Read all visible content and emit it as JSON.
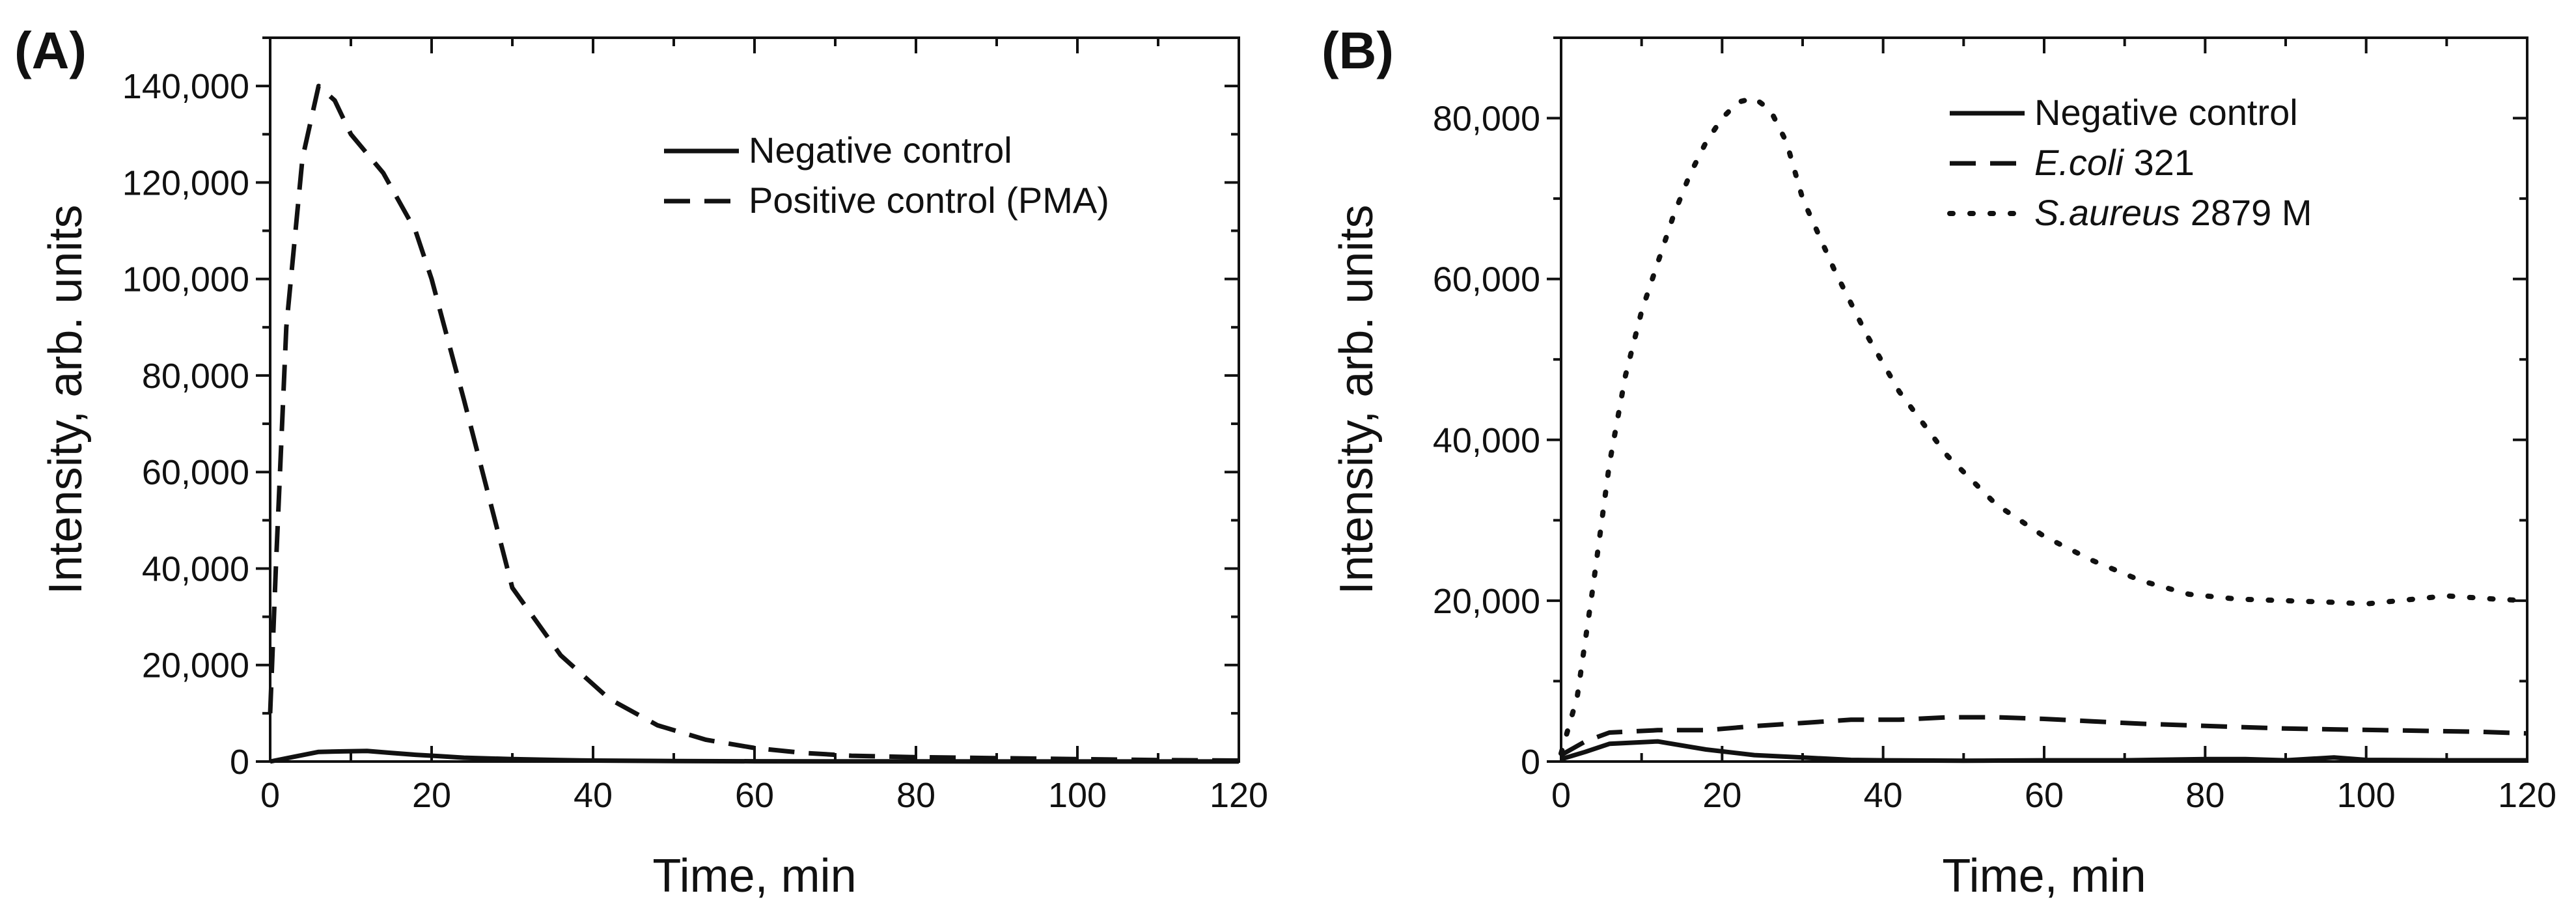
{
  "figure": {
    "colors": {
      "line": "#111111",
      "background": "#ffffff"
    }
  },
  "chart_data": [
    {
      "type": "line",
      "panel_label": "(A)",
      "xlabel": "Time, min",
      "ylabel": "Intensity, arb. units",
      "xlim": [
        0,
        120
      ],
      "ylim": [
        0,
        150000
      ],
      "x_ticks": [
        0,
        20,
        40,
        60,
        80,
        100,
        120
      ],
      "x_tick_labels": [
        "0",
        "20",
        "40",
        "60",
        "80",
        "100",
        "120"
      ],
      "y_ticks": [
        0,
        20000,
        40000,
        60000,
        80000,
        100000,
        120000,
        140000
      ],
      "y_tick_labels": [
        "0",
        "20,000",
        "40,000",
        "60,000",
        "80,000",
        "100,000",
        "120,000",
        "140,000"
      ],
      "legend_position": "top-right",
      "series": [
        {
          "name": "Negative control",
          "name_parts": [
            {
              "text": "Negative control",
              "italic": false
            }
          ],
          "style": "solid",
          "points": [
            [
              0,
              0
            ],
            [
              3,
              1000
            ],
            [
              6,
              2000
            ],
            [
              9,
              2100
            ],
            [
              12,
              2200
            ],
            [
              15,
              1800
            ],
            [
              18,
              1400
            ],
            [
              21,
              1100
            ],
            [
              24,
              800
            ],
            [
              30,
              500
            ],
            [
              36,
              300
            ],
            [
              40,
              200
            ],
            [
              50,
              100
            ],
            [
              60,
              50
            ],
            [
              80,
              30
            ],
            [
              100,
              20
            ],
            [
              120,
              20
            ]
          ]
        },
        {
          "name": "Positive control (PMA)",
          "name_parts": [
            {
              "text": "Positive control (PMA)",
              "italic": false
            }
          ],
          "style": "dashed",
          "points": [
            [
              0,
              10000
            ],
            [
              0.7,
              40000
            ],
            [
              2,
              90000
            ],
            [
              4,
              125000
            ],
            [
              6,
              140000
            ],
            [
              8,
              137000
            ],
            [
              10,
              130000
            ],
            [
              14,
              122000
            ],
            [
              18,
              110000
            ],
            [
              20,
              100000
            ],
            [
              24,
              75000
            ],
            [
              30,
              36000
            ],
            [
              36,
              22000
            ],
            [
              42,
              13000
            ],
            [
              48,
              7500
            ],
            [
              54,
              4500
            ],
            [
              60,
              2800
            ],
            [
              66,
              1800
            ],
            [
              72,
              1200
            ],
            [
              80,
              900
            ],
            [
              90,
              700
            ],
            [
              100,
              500
            ],
            [
              110,
              300
            ],
            [
              120,
              200
            ]
          ]
        }
      ]
    },
    {
      "type": "line",
      "panel_label": "(B)",
      "xlabel": "Time, min",
      "ylabel": "Intensity, arb. units",
      "xlim": [
        0,
        120
      ],
      "ylim": [
        0,
        90000
      ],
      "x_ticks": [
        0,
        20,
        40,
        60,
        80,
        100,
        120
      ],
      "x_tick_labels": [
        "0",
        "20",
        "40",
        "60",
        "80",
        "100",
        "120"
      ],
      "y_ticks": [
        0,
        20000,
        40000,
        60000,
        80000
      ],
      "y_tick_labels": [
        "0",
        "20,000",
        "40,000",
        "60,000",
        "80,000"
      ],
      "legend_position": "top-right",
      "series": [
        {
          "name": "Negative control",
          "name_parts": [
            {
              "text": "Negative control",
              "italic": false
            }
          ],
          "style": "solid",
          "points": [
            [
              0,
              300
            ],
            [
              3,
              1200
            ],
            [
              6,
              2200
            ],
            [
              12,
              2500
            ],
            [
              18,
              1500
            ],
            [
              24,
              800
            ],
            [
              30,
              500
            ],
            [
              36,
              200
            ],
            [
              40,
              150
            ],
            [
              50,
              100
            ],
            [
              60,
              150
            ],
            [
              70,
              150
            ],
            [
              80,
              300
            ],
            [
              85,
              300
            ],
            [
              90,
              150
            ],
            [
              96,
              500
            ],
            [
              100,
              200
            ],
            [
              110,
              150
            ],
            [
              120,
              150
            ]
          ]
        },
        {
          "name": "E.coli 321",
          "name_parts": [
            {
              "text": "E.coli",
              "italic": true
            },
            {
              "text": " 321",
              "italic": false
            }
          ],
          "style": "dashed",
          "points": [
            [
              0,
              800
            ],
            [
              3,
              2500
            ],
            [
              6,
              3600
            ],
            [
              12,
              3900
            ],
            [
              18,
              3900
            ],
            [
              24,
              4400
            ],
            [
              30,
              4800
            ],
            [
              36,
              5200
            ],
            [
              42,
              5200
            ],
            [
              48,
              5500
            ],
            [
              54,
              5500
            ],
            [
              60,
              5300
            ],
            [
              66,
              5000
            ],
            [
              72,
              4700
            ],
            [
              78,
              4500
            ],
            [
              84,
              4300
            ],
            [
              90,
              4100
            ],
            [
              96,
              4000
            ],
            [
              102,
              3900
            ],
            [
              108,
              3800
            ],
            [
              114,
              3700
            ],
            [
              120,
              3500
            ]
          ]
        },
        {
          "name": "S.aureus 2879 M",
          "name_parts": [
            {
              "text": "S.aureus",
              "italic": true
            },
            {
              "text": " 2879 M",
              "italic": false
            }
          ],
          "style": "dotted",
          "points": [
            [
              0,
              1000
            ],
            [
              2,
              8000
            ],
            [
              4,
              22000
            ],
            [
              6,
              37000
            ],
            [
              8,
              48000
            ],
            [
              10,
              56000
            ],
            [
              12,
              62000
            ],
            [
              14,
              68000
            ],
            [
              16,
              73000
            ],
            [
              18,
              77000
            ],
            [
              20,
              80000
            ],
            [
              22,
              82000
            ],
            [
              24,
              82500
            ],
            [
              26,
              81000
            ],
            [
              28,
              77000
            ],
            [
              30,
              70000
            ],
            [
              34,
              61000
            ],
            [
              38,
              53000
            ],
            [
              42,
              46000
            ],
            [
              48,
              38000
            ],
            [
              54,
              32000
            ],
            [
              60,
              28000
            ],
            [
              66,
              25000
            ],
            [
              72,
              22500
            ],
            [
              78,
              20800
            ],
            [
              84,
              20200
            ],
            [
              90,
              20000
            ],
            [
              96,
              19800
            ],
            [
              100,
              19600
            ],
            [
              104,
              20000
            ],
            [
              110,
              20600
            ],
            [
              116,
              20200
            ],
            [
              120,
              20000
            ]
          ]
        }
      ]
    }
  ]
}
